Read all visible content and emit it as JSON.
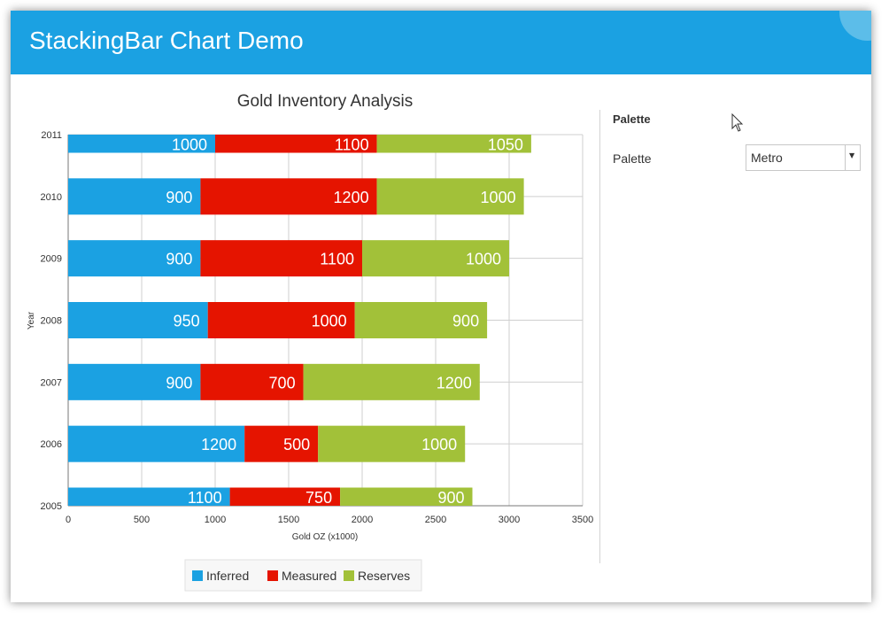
{
  "window": {
    "title": "StackingBar Chart Demo",
    "close_label": "×"
  },
  "panel": {
    "heading": "Palette",
    "palette_label": "Palette",
    "palette_value": "Metro"
  },
  "icons": {
    "close": "close-icon",
    "dropdown": "chevron-down-icon",
    "cursor": "mouse-cursor-icon"
  },
  "colors": {
    "accent": "#1ba1e2",
    "inferred": "#1ba1e2",
    "measured": "#e51400",
    "reserves": "#a2c139"
  },
  "chart_data": {
    "type": "bar",
    "orientation": "horizontal",
    "stacked": true,
    "title": "Gold Inventory Analysis",
    "xlabel": "Gold OZ (x1000)",
    "ylabel": "Year",
    "xlim": [
      0,
      3500
    ],
    "xticks": [
      "0",
      "500",
      "1000",
      "1500",
      "2000",
      "2500",
      "3000",
      "3500"
    ],
    "categories": [
      "2005",
      "2006",
      "2007",
      "2008",
      "2009",
      "2010",
      "2011"
    ],
    "series": [
      {
        "name": "Inferred",
        "color": "#1ba1e2",
        "values": [
          1100,
          1200,
          900,
          950,
          900,
          900,
          1000
        ]
      },
      {
        "name": "Measured",
        "color": "#e51400",
        "values": [
          750,
          500,
          700,
          1000,
          1100,
          1200,
          1100
        ]
      },
      {
        "name": "Reserves",
        "color": "#a2c139",
        "values": [
          900,
          1000,
          1200,
          900,
          1000,
          1000,
          1050
        ]
      }
    ],
    "grid": true,
    "legend": "bottom"
  }
}
